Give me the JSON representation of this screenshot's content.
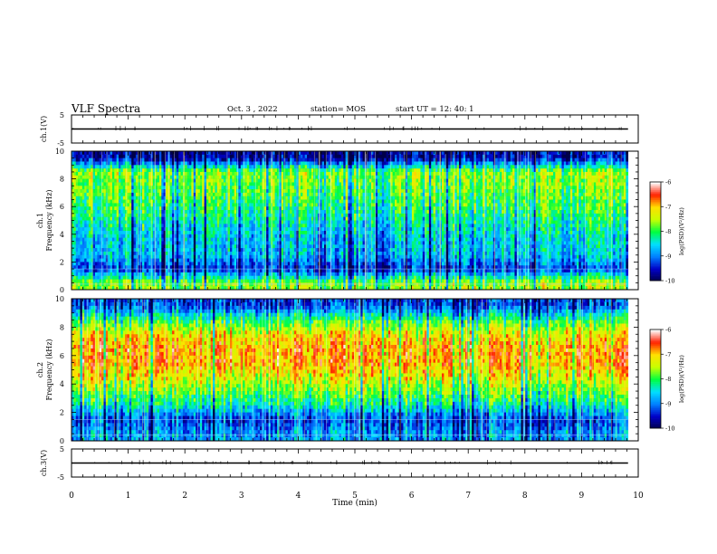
{
  "header": {
    "title": "VLF Spectra",
    "date": "Oct. 3 , 2022",
    "station": "station= MOS",
    "start_ut": "start UT =  12: 40: 1"
  },
  "colorbar": {
    "label": "log(PSD)(V²/Hz)",
    "ticks": [
      "-6",
      "-7",
      "-8",
      "-9",
      "-10"
    ]
  },
  "chart_data": [
    {
      "type": "line",
      "id": "ch1-waveform",
      "ylabel": "ch.1(V)",
      "yticks": [
        "5",
        "-5"
      ],
      "ylim": [
        -5,
        5
      ],
      "xlim": [
        0,
        10
      ],
      "series": [
        {
          "x": [
            0,
            9.82
          ],
          "y": [
            0,
            0
          ]
        }
      ]
    },
    {
      "type": "heatmap",
      "id": "ch1-spectrogram",
      "ylabel": "ch.1\nFrequency (kHz)",
      "ylim": [
        0,
        10
      ],
      "yticks": [
        "0",
        "2",
        "4",
        "6",
        "8",
        "10"
      ],
      "xlim": [
        0,
        10
      ],
      "data_end_min": 9.82,
      "zlim": [
        -10,
        -6
      ],
      "colormap": [
        "#00004a",
        "#0000c8",
        "#0080ff",
        "#00e0ff",
        "#00ff40",
        "#c8ff00",
        "#ffe000",
        "#ff2000",
        "#ffffff"
      ],
      "profile_khz": [
        0.5,
        1.5,
        2.5,
        3.5,
        4.5,
        5.5,
        6.5,
        7.5,
        8.5,
        9.5
      ],
      "profile_logpsd": [
        -7.6,
        -9.3,
        -8.6,
        -8.6,
        -8.4,
        -8.1,
        -7.9,
        -7.7,
        -7.6,
        -9.6
      ]
    },
    {
      "type": "heatmap",
      "id": "ch2-spectrogram",
      "ylabel": "ch.2\nFrequency (kHz)",
      "ylim": [
        0,
        10
      ],
      "yticks": [
        "0",
        "2",
        "4",
        "6",
        "8",
        "10"
      ],
      "xlim": [
        0,
        10
      ],
      "data_end_min": 9.82,
      "zlim": [
        -10,
        -6
      ],
      "colormap": [
        "#00004a",
        "#0000c8",
        "#0080ff",
        "#00e0ff",
        "#00ff40",
        "#c8ff00",
        "#ffe000",
        "#ff2000",
        "#ffffff"
      ],
      "profile_khz": [
        0.5,
        1.5,
        2.5,
        3.5,
        4.5,
        5.5,
        6.5,
        7.5,
        8.5,
        9.5
      ],
      "profile_logpsd": [
        -8.8,
        -9.2,
        -8.3,
        -7.7,
        -7.2,
        -6.8,
        -6.8,
        -7.1,
        -8.0,
        -9.2
      ]
    },
    {
      "type": "line",
      "id": "ch3-waveform",
      "ylabel": "ch.3(V)",
      "yticks": [
        "5",
        "-5"
      ],
      "ylim": [
        -5,
        5
      ],
      "xlim": [
        0,
        10
      ],
      "series": [
        {
          "x": [
            0,
            9.82
          ],
          "y": [
            0,
            0
          ]
        }
      ]
    }
  ],
  "xaxis": {
    "label": "Time (min)",
    "ticks": [
      "0",
      "1",
      "2",
      "3",
      "4",
      "5",
      "6",
      "7",
      "8",
      "9",
      "10"
    ]
  }
}
